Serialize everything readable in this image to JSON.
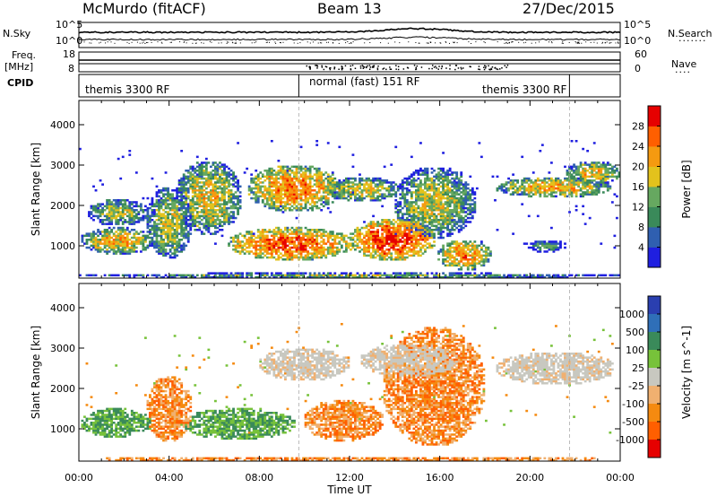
{
  "header": {
    "title": "McMurdo (fitACF)",
    "beam": "Beam 13",
    "date": "27/Dec/2015"
  },
  "labels": {
    "nsky": "N.Sky",
    "freq": "Freq.",
    "freq_unit": "[MHz]",
    "cpid": "CPID",
    "nsearch": "N.Search",
    "nave": "Nave",
    "nsky_ticks": [
      "10^5",
      "10^0"
    ],
    "nsearch_ticks": [
      "10^5",
      "10^0"
    ],
    "freq_ticks": [
      "18",
      "8"
    ],
    "nave_ticks": [
      "60",
      "0"
    ]
  },
  "cpid_segments": [
    {
      "label": "themis 3300 RF",
      "start_hour": 0,
      "end_hour": 9.75
    },
    {
      "label": "normal (fast) 151 RF",
      "start_hour": 9.75,
      "end_hour": 21.75
    },
    {
      "label": "themis 3300 RF",
      "start_hour": 21.75,
      "end_hour": 24
    }
  ],
  "chart_data": [
    {
      "type": "heatmap",
      "name": "Power",
      "xlabel": "Time UT",
      "ylabel": "Slant Range [km]",
      "xlim": [
        0,
        24
      ],
      "ylim": [
        200,
        4600
      ],
      "x_ticks": [
        "00:00",
        "04:00",
        "08:00",
        "12:00",
        "16:00",
        "20:00",
        "00:00"
      ],
      "y_ticks": [
        1000,
        2000,
        3000,
        4000
      ],
      "colorbar": {
        "label": "Power [dB]",
        "ticks": [
          4,
          8,
          12,
          16,
          20,
          24,
          28
        ],
        "range": [
          0,
          32
        ],
        "colors": [
          "#1f1fe0",
          "#2f5fb0",
          "#3a8a5a",
          "#66a860",
          "#e3c21c",
          "#f59a10",
          "#ff5f00",
          "#e60000"
        ]
      },
      "regions": [
        {
          "t": [
            0.1,
            3.4
          ],
          "r": [
            800,
            1450
          ],
          "level": 0.62
        },
        {
          "t": [
            0.4,
            3.1
          ],
          "r": [
            1500,
            2150
          ],
          "level": 0.45
        },
        {
          "t": [
            3.0,
            5.0
          ],
          "r": [
            700,
            2450
          ],
          "level": 0.48
        },
        {
          "t": [
            4.3,
            7.2
          ],
          "r": [
            1300,
            3100
          ],
          "level": 0.55
        },
        {
          "t": [
            6.6,
            12.2
          ],
          "r": [
            650,
            1450
          ],
          "level": 0.78
        },
        {
          "t": [
            7.5,
            11.6
          ],
          "r": [
            1850,
            3000
          ],
          "level": 0.72
        },
        {
          "t": [
            11.0,
            14.2
          ],
          "r": [
            2100,
            2700
          ],
          "level": 0.55
        },
        {
          "t": [
            12.0,
            15.8
          ],
          "r": [
            650,
            1650
          ],
          "level": 0.85
        },
        {
          "t": [
            14.0,
            17.6
          ],
          "r": [
            1200,
            2950
          ],
          "level": 0.5
        },
        {
          "t": [
            15.9,
            18.3
          ],
          "r": [
            400,
            1150
          ],
          "level": 0.68
        },
        {
          "t": [
            18.5,
            23.6
          ],
          "r": [
            2200,
            2700
          ],
          "level": 0.62
        },
        {
          "t": [
            21.6,
            24.0
          ],
          "r": [
            2500,
            3100
          ],
          "level": 0.55
        },
        {
          "t": [
            19.8,
            21.6
          ],
          "r": [
            850,
            1150
          ],
          "level": 0.3
        },
        {
          "t": [
            0.0,
            24.0
          ],
          "r": [
            200,
            330
          ],
          "level": 0.4
        }
      ]
    },
    {
      "type": "heatmap",
      "name": "Velocity",
      "xlabel": "Time UT",
      "ylabel": "Slant Range [km]",
      "xlim": [
        0,
        24
      ],
      "ylim": [
        200,
        4600
      ],
      "x_ticks": [
        "00:00",
        "04:00",
        "08:00",
        "12:00",
        "16:00",
        "20:00",
        "00:00"
      ],
      "y_ticks": [
        1000,
        2000,
        3000,
        4000
      ],
      "colorbar": {
        "label": "Velocity [m s^-1]",
        "ticks": [
          "1000",
          "500",
          "100",
          "25",
          "-25",
          "-100",
          "-500",
          "-1000"
        ],
        "colors": [
          "#2a3fb0",
          "#2f6fb8",
          "#3a8a5a",
          "#77c23a",
          "#c8c8c0",
          "#f0b070",
          "#f58a10",
          "#ff5f00",
          "#e60000"
        ]
      },
      "regions": [
        {
          "t": [
            0.1,
            3.2
          ],
          "r": [
            800,
            1500
          ],
          "class": "green"
        },
        {
          "t": [
            3.0,
            5.0
          ],
          "r": [
            700,
            2300
          ],
          "class": "orange"
        },
        {
          "t": [
            4.5,
            9.6
          ],
          "r": [
            750,
            1500
          ],
          "class": "green"
        },
        {
          "t": [
            8.0,
            12.0
          ],
          "r": [
            2200,
            3000
          ],
          "class": "gray"
        },
        {
          "t": [
            10.0,
            13.5
          ],
          "r": [
            700,
            1700
          ],
          "class": "orange"
        },
        {
          "t": [
            12.5,
            16.8
          ],
          "r": [
            2300,
            3100
          ],
          "class": "gray"
        },
        {
          "t": [
            13.5,
            18.0
          ],
          "r": [
            600,
            3500
          ],
          "class": "orange"
        },
        {
          "t": [
            18.5,
            23.8
          ],
          "r": [
            2100,
            2900
          ],
          "class": "gray"
        },
        {
          "t": [
            0.0,
            24.0
          ],
          "r": [
            200,
            300
          ],
          "class": "orange"
        }
      ]
    }
  ]
}
